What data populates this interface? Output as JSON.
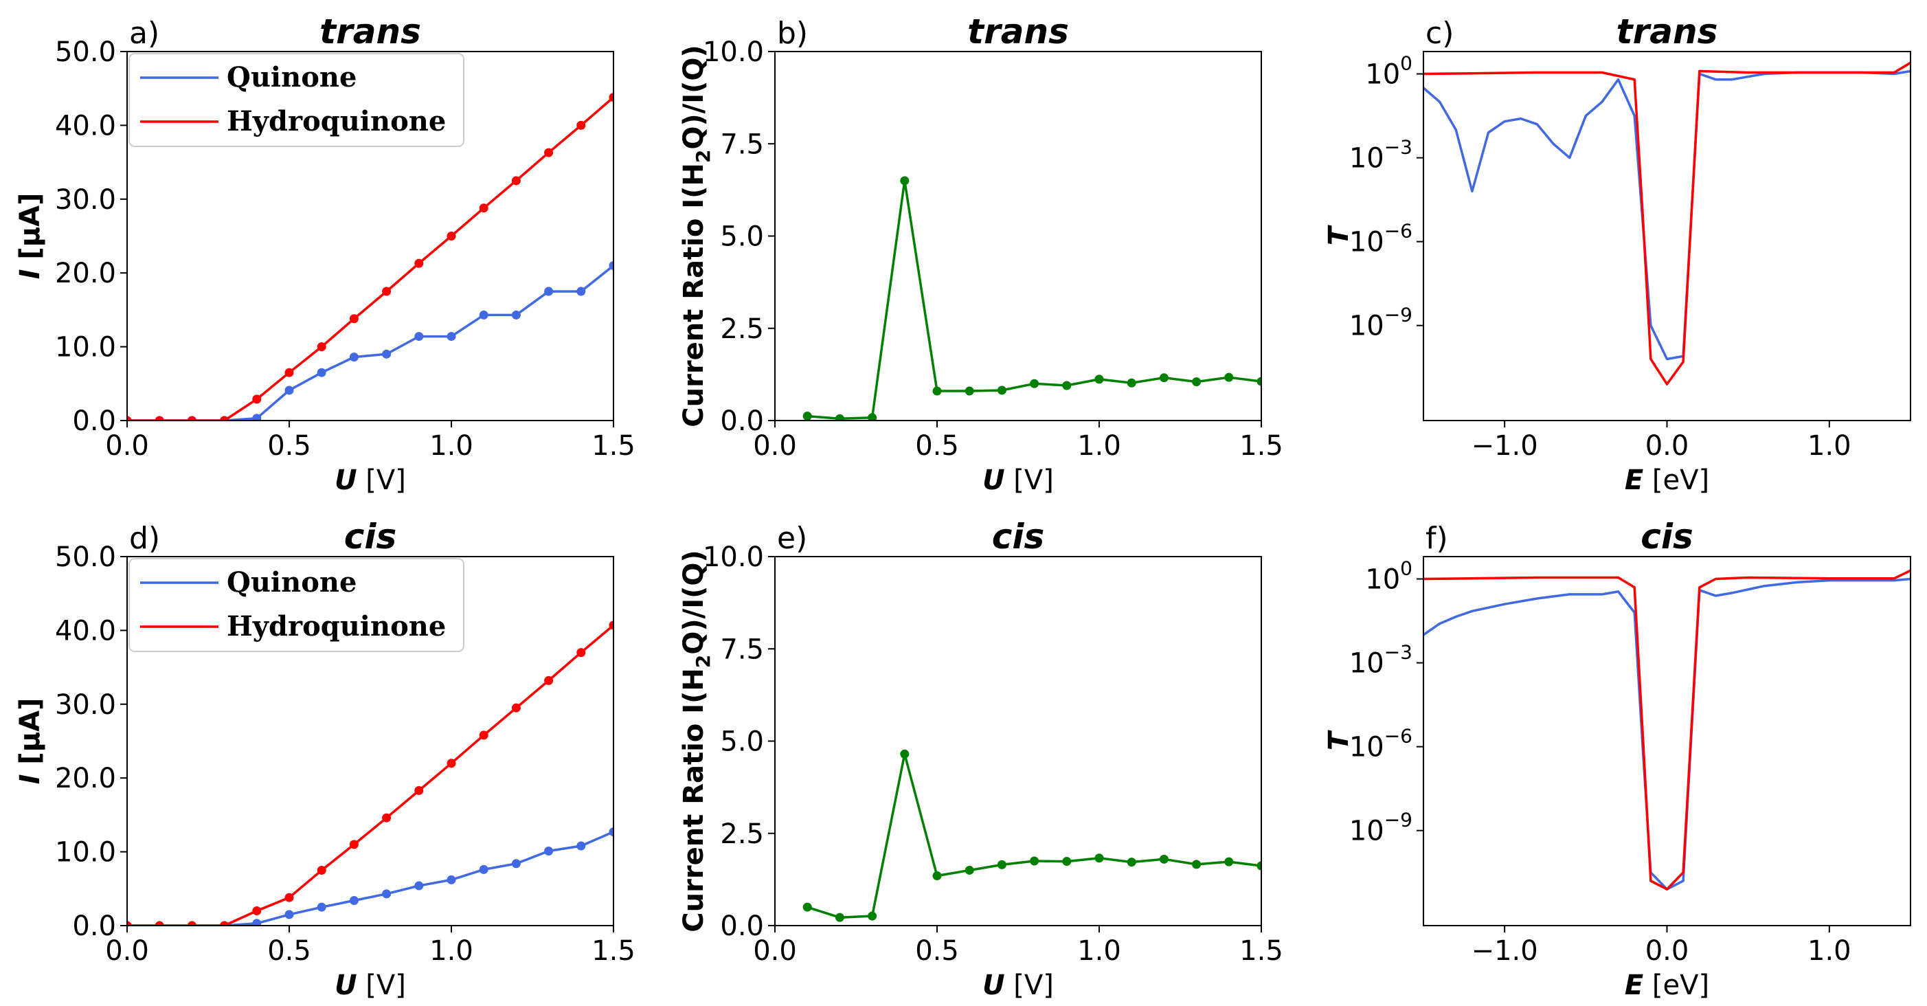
{
  "chart_data": [
    {
      "id": "a",
      "type": "line",
      "panel_label": "a)",
      "title": "trans",
      "xlabel_var": "U",
      "xlabel_unit": " [V]",
      "ylabel_var": "I",
      "ylabel_unit": " [µA]",
      "xlim": [
        0,
        1.5
      ],
      "ylim": [
        0,
        50
      ],
      "xticks": [
        0,
        0.5,
        1.0,
        1.5
      ],
      "xtick_labels": [
        "0.0",
        "0.5",
        "1.0",
        "1.5"
      ],
      "yticks": [
        0,
        10,
        20,
        30,
        40,
        50
      ],
      "ytick_labels": [
        "0.0",
        "10.0",
        "20.0",
        "30.0",
        "40.0",
        "50.0"
      ],
      "legend": {
        "position": "upper-left",
        "entries": [
          "Quinone",
          "Hydroquinone"
        ]
      },
      "x": [
        0,
        0.1,
        0.2,
        0.3,
        0.4,
        0.5,
        0.6,
        0.7,
        0.8,
        0.9,
        1.0,
        1.1,
        1.2,
        1.3,
        1.4,
        1.5
      ],
      "series": [
        {
          "name": "Quinone",
          "color": "#4169e1",
          "markers": true,
          "values": [
            0,
            0,
            0,
            0,
            0.3,
            4.1,
            6.5,
            8.6,
            9.0,
            11.4,
            11.4,
            14.3,
            14.3,
            17.5,
            17.5,
            21.0
          ]
        },
        {
          "name": "Hydroquinone",
          "color": "#ff0000",
          "markers": true,
          "values": [
            0,
            0,
            0,
            0,
            2.9,
            6.5,
            10.0,
            13.8,
            17.5,
            21.3,
            25.0,
            28.8,
            32.5,
            36.3,
            40.0,
            43.8
          ]
        }
      ]
    },
    {
      "id": "b",
      "type": "line",
      "panel_label": "b)",
      "title": "trans",
      "xlabel_var": "U",
      "xlabel_unit": " [V]",
      "ylabel_text": "Current Ratio I(H",
      "ylabel_sub": "2",
      "ylabel_rest": "Q)/I(Q)",
      "xlim": [
        0,
        1.5
      ],
      "ylim": [
        0,
        10
      ],
      "xticks": [
        0,
        0.5,
        1.0,
        1.5
      ],
      "xtick_labels": [
        "0.0",
        "0.5",
        "1.0",
        "1.5"
      ],
      "yticks": [
        0,
        2.5,
        5,
        7.5,
        10
      ],
      "ytick_labels": [
        "0.0",
        "2.5",
        "5.0",
        "7.5",
        "10.0"
      ],
      "x": [
        0.1,
        0.2,
        0.3,
        0.4,
        0.5,
        0.6,
        0.7,
        0.8,
        0.9,
        1.0,
        1.1,
        1.2,
        1.3,
        1.4,
        1.5
      ],
      "series": [
        {
          "name": "ratio",
          "color": "#008000",
          "markers": true,
          "values": [
            0.12,
            0.05,
            0.08,
            6.5,
            0.8,
            0.8,
            0.82,
            1.0,
            0.95,
            1.12,
            1.02,
            1.16,
            1.05,
            1.17,
            1.06
          ]
        }
      ]
    },
    {
      "id": "c",
      "type": "line",
      "panel_label": "c)",
      "title": "trans",
      "yscale": "log",
      "xlabel_var": "E",
      "xlabel_unit": " [eV]",
      "ylabel_var": "T",
      "xlim": [
        -1.5,
        1.5
      ],
      "ylim_log10": [
        -12.4,
        0.8
      ],
      "xticks": [
        -1.0,
        0.0,
        1.0
      ],
      "xtick_labels": [
        "−1.0",
        "0.0",
        "1.0"
      ],
      "yticks_log10": [
        0,
        -3,
        -6,
        -9
      ],
      "ytick_mantissa": "10",
      "ytick_exponents": [
        "0",
        "−3",
        "−6",
        "−9"
      ],
      "series": [
        {
          "name": "Quinone",
          "color": "#4169e1",
          "markers": false,
          "x": [
            -1.5,
            -1.4,
            -1.3,
            -1.2,
            -1.1,
            -1.0,
            -0.9,
            -0.8,
            -0.7,
            -0.6,
            -0.5,
            -0.4,
            -0.3,
            -0.2,
            -0.1,
            0.0,
            0.1,
            0.2,
            0.3,
            0.4,
            0.6,
            0.8,
            1.0,
            1.2,
            1.4,
            1.5
          ],
          "log10_values": [
            -0.5,
            -1.0,
            -2.0,
            -4.2,
            -2.1,
            -1.7,
            -1.6,
            -1.8,
            -2.5,
            -3.0,
            -1.5,
            -1.0,
            -0.2,
            -1.5,
            -9.0,
            -10.2,
            -10.1,
            0.0,
            -0.2,
            -0.2,
            0.0,
            0.05,
            0.05,
            0.05,
            0.0,
            0.1
          ]
        },
        {
          "name": "Hydroquinone",
          "color": "#ff0000",
          "markers": false,
          "x": [
            -1.5,
            -1.2,
            -0.8,
            -0.4,
            -0.2,
            -0.15,
            -0.1,
            0.0,
            0.1,
            0.2,
            0.5,
            1.0,
            1.4,
            1.5
          ],
          "log10_values": [
            0.0,
            0.02,
            0.05,
            0.05,
            -0.2,
            -5.0,
            -10.2,
            -11.1,
            -10.3,
            0.1,
            0.05,
            0.05,
            0.05,
            0.4
          ]
        }
      ]
    },
    {
      "id": "d",
      "type": "line",
      "panel_label": "d)",
      "title": "cis",
      "xlabel_var": "U",
      "xlabel_unit": " [V]",
      "ylabel_var": "I",
      "ylabel_unit": " [µA]",
      "xlim": [
        0,
        1.5
      ],
      "ylim": [
        0,
        50
      ],
      "xticks": [
        0,
        0.5,
        1.0,
        1.5
      ],
      "xtick_labels": [
        "0.0",
        "0.5",
        "1.0",
        "1.5"
      ],
      "yticks": [
        0,
        10,
        20,
        30,
        40,
        50
      ],
      "ytick_labels": [
        "0.0",
        "10.0",
        "20.0",
        "30.0",
        "40.0",
        "50.0"
      ],
      "legend": {
        "position": "upper-left",
        "entries": [
          "Quinone",
          "Hydroquinone"
        ]
      },
      "x": [
        0,
        0.1,
        0.2,
        0.3,
        0.4,
        0.5,
        0.6,
        0.7,
        0.8,
        0.9,
        1.0,
        1.1,
        1.2,
        1.3,
        1.4,
        1.5
      ],
      "series": [
        {
          "name": "Quinone",
          "color": "#4169e1",
          "markers": true,
          "values": [
            0,
            0,
            0,
            0,
            0.3,
            1.5,
            2.5,
            3.4,
            4.3,
            5.4,
            6.2,
            7.6,
            8.4,
            10.1,
            10.8,
            12.7
          ]
        },
        {
          "name": "Hydroquinone",
          "color": "#ff0000",
          "markers": true,
          "values": [
            0,
            0,
            0,
            0,
            2.0,
            3.8,
            7.5,
            11.0,
            14.6,
            18.3,
            22.0,
            25.8,
            29.5,
            33.2,
            37.0,
            40.7
          ]
        }
      ]
    },
    {
      "id": "e",
      "type": "line",
      "panel_label": "e)",
      "title": "cis",
      "xlabel_var": "U",
      "xlabel_unit": " [V]",
      "ylabel_text": "Current Ratio I(H",
      "ylabel_sub": "2",
      "ylabel_rest": "Q)/I(Q)",
      "xlim": [
        0,
        1.5
      ],
      "ylim": [
        0,
        10
      ],
      "xticks": [
        0,
        0.5,
        1.0,
        1.5
      ],
      "xtick_labels": [
        "0.0",
        "0.5",
        "1.0",
        "1.5"
      ],
      "yticks": [
        0,
        2.5,
        5,
        7.5,
        10
      ],
      "ytick_labels": [
        "0.0",
        "2.5",
        "5.0",
        "7.5",
        "10.0"
      ],
      "x": [
        0.1,
        0.2,
        0.3,
        0.4,
        0.5,
        0.6,
        0.7,
        0.8,
        0.9,
        1.0,
        1.1,
        1.2,
        1.3,
        1.4,
        1.5
      ],
      "series": [
        {
          "name": "ratio",
          "color": "#008000",
          "markers": true,
          "values": [
            0.5,
            0.22,
            0.26,
            4.65,
            1.35,
            1.5,
            1.65,
            1.75,
            1.74,
            1.83,
            1.72,
            1.8,
            1.66,
            1.73,
            1.62
          ]
        }
      ]
    },
    {
      "id": "f",
      "type": "line",
      "panel_label": "f)",
      "title": "cis",
      "yscale": "log",
      "xlabel_var": "E",
      "xlabel_unit": " [eV]",
      "ylabel_var": "T",
      "xlim": [
        -1.5,
        1.5
      ],
      "ylim_log10": [
        -12.4,
        0.8
      ],
      "xticks": [
        -1.0,
        0.0,
        1.0
      ],
      "xtick_labels": [
        "−1.0",
        "0.0",
        "1.0"
      ],
      "yticks_log10": [
        0,
        -3,
        -6,
        -9
      ],
      "ytick_mantissa": "10",
      "ytick_exponents": [
        "0",
        "−3",
        "−6",
        "−9"
      ],
      "series": [
        {
          "name": "Quinone",
          "color": "#4169e1",
          "markers": false,
          "x": [
            -1.5,
            -1.4,
            -1.3,
            -1.2,
            -1.0,
            -0.8,
            -0.6,
            -0.4,
            -0.3,
            -0.2,
            -0.15,
            -0.1,
            0.0,
            0.1,
            0.2,
            0.3,
            0.4,
            0.6,
            0.8,
            1.0,
            1.2,
            1.4,
            1.5
          ],
          "log10_values": [
            -2.0,
            -1.6,
            -1.35,
            -1.15,
            -0.9,
            -0.7,
            -0.55,
            -0.55,
            -0.45,
            -1.2,
            -6.0,
            -10.5,
            -11.1,
            -10.8,
            -0.4,
            -0.6,
            -0.5,
            -0.25,
            -0.12,
            -0.05,
            -0.05,
            -0.05,
            0.0
          ]
        },
        {
          "name": "Hydroquinone",
          "color": "#ff0000",
          "markers": false,
          "x": [
            -1.5,
            -1.2,
            -0.8,
            -0.4,
            -0.3,
            -0.2,
            -0.15,
            -0.1,
            0.0,
            0.1,
            0.2,
            0.3,
            0.5,
            1.0,
            1.4,
            1.5
          ],
          "log10_values": [
            0.0,
            0.02,
            0.05,
            0.05,
            0.05,
            -0.3,
            -5.5,
            -10.8,
            -11.1,
            -10.5,
            -0.3,
            0.0,
            0.05,
            0.02,
            0.02,
            0.3
          ]
        }
      ]
    }
  ]
}
